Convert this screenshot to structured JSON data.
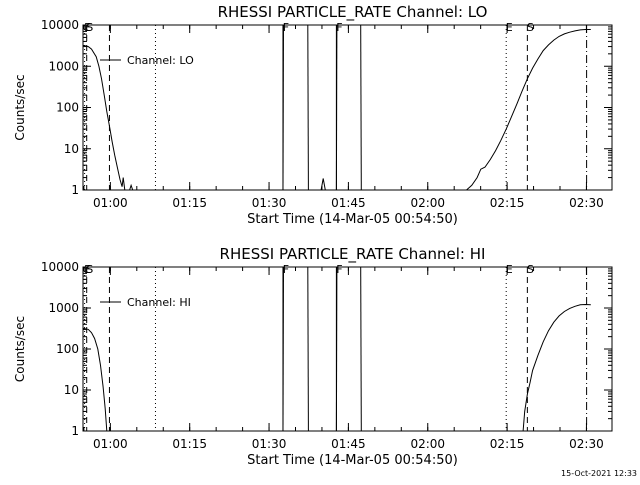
{
  "footer": {
    "timestamp": "15-Oct-2021 12:33"
  },
  "chart_data": [
    {
      "type": "line",
      "title": "RHESSI PARTICLE_RATE Channel: LO",
      "xlabel": "Start Time (14-Mar-05 00:54:50)",
      "ylabel": "Counts/sec",
      "x_unit": "minutes after 00:54:50",
      "xlim": [
        0,
        100
      ],
      "ylim": [
        1,
        10000
      ],
      "yscale": "log",
      "x_ticks": [
        {
          "x": 5.17,
          "label": "01:00"
        },
        {
          "x": 20.17,
          "label": "01:15"
        },
        {
          "x": 35.17,
          "label": "01:30"
        },
        {
          "x": 50.17,
          "label": "01:45"
        },
        {
          "x": 65.17,
          "label": "02:00"
        },
        {
          "x": 80.17,
          "label": "02:15"
        },
        {
          "x": 95.17,
          "label": "02:30"
        }
      ],
      "y_ticks": [
        {
          "y": 1,
          "label": "1"
        },
        {
          "y": 10,
          "label": "10"
        },
        {
          "y": 100,
          "label": "100"
        },
        {
          "y": 1000,
          "label": "1000"
        },
        {
          "y": 10000,
          "label": "10000"
        }
      ],
      "legend": {
        "label": "Channel: LO",
        "position": "top-left"
      },
      "grid": false,
      "series": [
        {
          "name": "Channel: LO",
          "segments": [
            [
              [
                0,
                3200
              ],
              [
                1,
                3000
              ],
              [
                1.6,
                2600
              ],
              [
                2.5,
                1700
              ],
              [
                3,
                1000
              ],
              [
                3.5,
                500
              ],
              [
                4,
                200
              ],
              [
                4.5,
                80
              ],
              [
                5,
                35
              ],
              [
                5.5,
                15
              ],
              [
                6,
                7
              ],
              [
                6.5,
                3.5
              ],
              [
                7,
                1.8
              ],
              [
                7.4,
                1.2
              ],
              [
                7.6,
                2
              ],
              [
                7.9,
                1
              ]
            ],
            [
              [
                8.8,
                1
              ],
              [
                9.1,
                1.3
              ],
              [
                9.4,
                1
              ]
            ],
            [
              [
                37.8,
                1
              ],
              [
                37.9,
                10000
              ]
            ],
            [
              [
                42.5,
                10000
              ],
              [
                42.6,
                1
              ]
            ],
            [
              [
                47.9,
                1
              ],
              [
                48,
                10000
              ]
            ],
            [
              [
                52.5,
                10000
              ],
              [
                52.6,
                1
              ]
            ],
            [
              [
                45,
                1
              ],
              [
                45.4,
                1.9
              ],
              [
                45.8,
                1
              ]
            ],
            [
              [
                72.5,
                1
              ],
              [
                73.5,
                1.3
              ],
              [
                74.5,
                2
              ],
              [
                75.2,
                3.2
              ],
              [
                76,
                3.6
              ],
              [
                77,
                5.5
              ],
              [
                78,
                9
              ],
              [
                79,
                16
              ],
              [
                80,
                30
              ],
              [
                81,
                60
              ],
              [
                82,
                120
              ],
              [
                83,
                250
              ],
              [
                84,
                500
              ],
              [
                85,
                900
              ],
              [
                86,
                1500
              ],
              [
                87,
                2400
              ],
              [
                88,
                3300
              ],
              [
                89,
                4300
              ],
              [
                90,
                5300
              ],
              [
                91,
                6100
              ],
              [
                92,
                6700
              ],
              [
                93,
                7200
              ],
              [
                94,
                7600
              ],
              [
                95,
                7800
              ],
              [
                96,
                7800
              ]
            ]
          ]
        }
      ],
      "event_lines": [
        {
          "x": 0.3,
          "style": "dotted",
          "label": "E"
        },
        {
          "x": 0.7,
          "style": "dashed",
          "label": "S"
        },
        {
          "x": 5.0,
          "style": "dashed",
          "label": ""
        },
        {
          "x": 13.7,
          "style": "dotted",
          "label": ""
        },
        {
          "x": 37.8,
          "style": "solid",
          "label": "F"
        },
        {
          "x": 47.9,
          "style": "solid",
          "label": "F"
        },
        {
          "x": 80.0,
          "style": "dotted",
          "label": "E"
        },
        {
          "x": 84.0,
          "style": "dashed",
          "label": "S"
        },
        {
          "x": 95.2,
          "style": "dashdot",
          "label": ""
        }
      ]
    },
    {
      "type": "line",
      "title": "RHESSI PARTICLE_RATE Channel: HI",
      "xlabel": "Start Time (14-Mar-05 00:54:50)",
      "ylabel": "Counts/sec",
      "x_unit": "minutes after 00:54:50",
      "xlim": [
        0,
        100
      ],
      "ylim": [
        1,
        10000
      ],
      "yscale": "log",
      "x_ticks": [
        {
          "x": 5.17,
          "label": "01:00"
        },
        {
          "x": 20.17,
          "label": "01:15"
        },
        {
          "x": 35.17,
          "label": "01:30"
        },
        {
          "x": 50.17,
          "label": "01:45"
        },
        {
          "x": 65.17,
          "label": "02:00"
        },
        {
          "x": 80.17,
          "label": "02:15"
        },
        {
          "x": 95.17,
          "label": "02:30"
        }
      ],
      "y_ticks": [
        {
          "y": 1,
          "label": "1"
        },
        {
          "y": 10,
          "label": "10"
        },
        {
          "y": 100,
          "label": "100"
        },
        {
          "y": 1000,
          "label": "1000"
        },
        {
          "y": 10000,
          "label": "10000"
        }
      ],
      "legend": {
        "label": "Channel: HI",
        "position": "top-left"
      },
      "grid": false,
      "series": [
        {
          "name": "Channel: HI",
          "segments": [
            [
              [
                0,
                320
              ],
              [
                1,
                300
              ],
              [
                1.6,
                250
              ],
              [
                2.2,
                180
              ],
              [
                2.8,
                100
              ],
              [
                3.3,
                40
              ],
              [
                3.8,
                12
              ],
              [
                4.2,
                3.5
              ],
              [
                4.5,
                1
              ]
            ],
            [
              [
                37.8,
                1
              ],
              [
                37.9,
                10000
              ]
            ],
            [
              [
                42.5,
                10000
              ],
              [
                42.6,
                1
              ]
            ],
            [
              [
                47.9,
                1
              ],
              [
                48,
                10000
              ]
            ],
            [
              [
                52.5,
                10000
              ],
              [
                52.6,
                1
              ]
            ],
            [
              [
                83.2,
                1
              ],
              [
                83.5,
                3
              ],
              [
                84,
                8
              ],
              [
                84.5,
                15
              ],
              [
                85,
                30
              ],
              [
                86,
                70
              ],
              [
                87,
                150
              ],
              [
                88,
                280
              ],
              [
                89,
                450
              ],
              [
                90,
                640
              ],
              [
                91,
                820
              ],
              [
                92,
                980
              ],
              [
                93,
                1100
              ],
              [
                94,
                1200
              ],
              [
                95,
                1220
              ],
              [
                96,
                1200
              ]
            ]
          ]
        }
      ],
      "event_lines": [
        {
          "x": 0.3,
          "style": "dotted",
          "label": "E"
        },
        {
          "x": 0.7,
          "style": "dashed",
          "label": "S"
        },
        {
          "x": 5.0,
          "style": "dashed",
          "label": ""
        },
        {
          "x": 13.7,
          "style": "dotted",
          "label": ""
        },
        {
          "x": 37.8,
          "style": "solid",
          "label": "F"
        },
        {
          "x": 47.9,
          "style": "solid",
          "label": "F"
        },
        {
          "x": 80.0,
          "style": "dotted",
          "label": "E"
        },
        {
          "x": 84.0,
          "style": "dashed",
          "label": "S"
        },
        {
          "x": 95.2,
          "style": "dashdot",
          "label": ""
        }
      ]
    }
  ]
}
